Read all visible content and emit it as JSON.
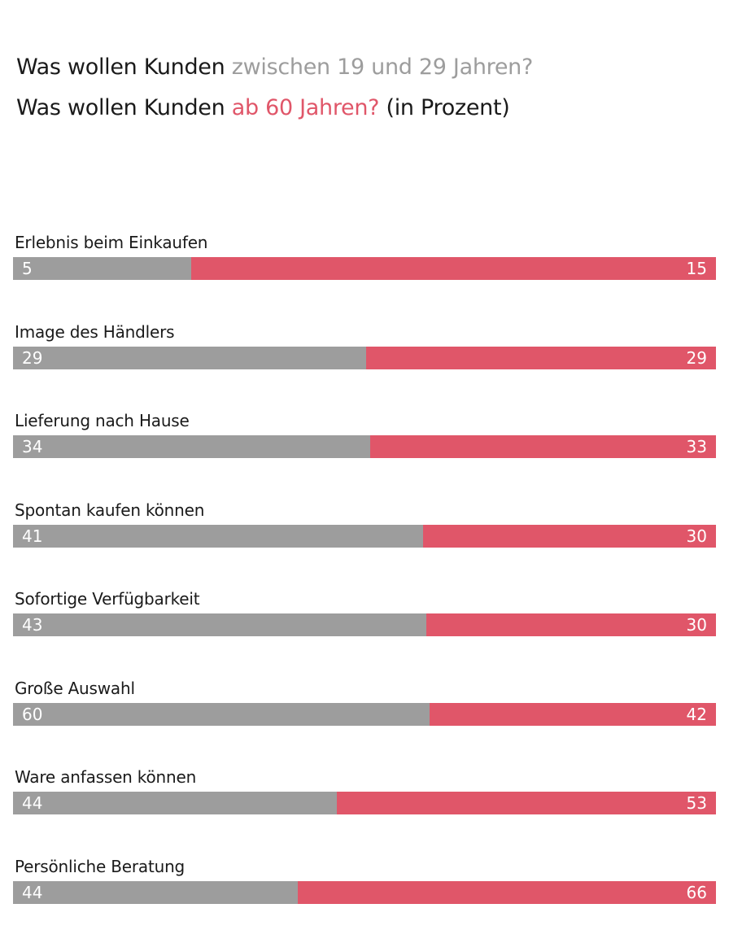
{
  "title": {
    "line1_prefix": "Was wollen Kunden ",
    "line1_highlight": "zwischen 19 und 29 Jahren?",
    "line2_prefix": "Was wollen Kunden ",
    "line2_highlight": "ab 60 Jahren?",
    "line2_suffix": " (in Prozent)"
  },
  "colors": {
    "young": "#9d9d9d",
    "old": "#e05669"
  },
  "chart_data": {
    "type": "bar",
    "stacked": true,
    "orientation": "horizontal",
    "title": "Was wollen Kunden zwischen 19 und 29 Jahren? Was wollen Kunden ab 60 Jahren? (in Prozent)",
    "categories": [
      "Erlebnis beim Einkaufen",
      "Image des Händlers",
      "Lieferung nach Hause",
      "Spontan kaufen können",
      "Sofortige Verfügbarkeit",
      "Große Auswahl",
      "Ware anfassen können",
      "Persönliche Beratung"
    ],
    "series": [
      {
        "name": "zwischen 19 und 29 Jahren",
        "values": [
          5,
          29,
          34,
          41,
          43,
          60,
          44,
          44
        ],
        "color": "#9d9d9d"
      },
      {
        "name": "ab 60 Jahren",
        "values": [
          15,
          29,
          33,
          30,
          30,
          42,
          53,
          66
        ],
        "color": "#e05669"
      }
    ],
    "young_share": [
      0.253,
      0.502,
      0.508,
      0.583,
      0.588,
      0.593,
      0.461,
      0.405
    ],
    "grid": false,
    "legend": "none"
  }
}
